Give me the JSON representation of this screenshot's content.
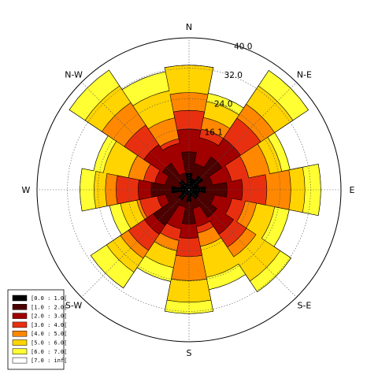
{
  "chart_data": {
    "type": "windrose",
    "directions": [
      "N",
      "N-E",
      "E",
      "S-E",
      "S",
      "S-W",
      "W",
      "N-W"
    ],
    "radial_ticks": [
      "16.1",
      "24.0",
      "32.0",
      "40.0"
    ],
    "r_max": 40.0,
    "bins": [
      {
        "label": "[0.0 : 1.0[",
        "color": "#000000"
      },
      {
        "label": "[1.0 : 2.0[",
        "color": "#4d0000"
      },
      {
        "label": "[2.0 : 3.0[",
        "color": "#a00000"
      },
      {
        "label": "[3.0 : 4.0[",
        "color": "#e83010"
      },
      {
        "label": "[4.0 : 5.0[",
        "color": "#ff8800"
      },
      {
        "label": "[5.0 : 6.0[",
        "color": "#ffd400"
      },
      {
        "label": "[6.0 : 7.0[",
        "color": "#ffff33"
      },
      {
        "label": "[7.0 : inf[",
        "color": "#ffffff"
      }
    ],
    "sector_angles_deg": [
      0,
      22.5,
      45,
      67.5,
      90,
      112.5,
      135,
      157.5,
      180,
      202.5,
      225,
      247.5,
      270,
      292.5,
      315,
      337.5
    ],
    "cumulative_frequency": [
      [
        4.4,
        3.0,
        4.4,
        2.7,
        4.4,
        2.7,
        3.0,
        1.8,
        3.1,
        1.4,
        3.3,
        2.3,
        4.6,
        2.4,
        3.1,
        1.8
      ],
      [
        10.0,
        7.0,
        10.4,
        6.3,
        10.0,
        6.8,
        8.8,
        5.0,
        9.0,
        4.7,
        11.3,
        6.2,
        10.0,
        6.4,
        8.4,
        4.5
      ],
      [
        16.0,
        14.0,
        16.3,
        11.4,
        14.1,
        11.5,
        14.1,
        9.9,
        12.8,
        10.5,
        14.1,
        8.5,
        13.4,
        9.2,
        14.3,
        12.5
      ],
      [
        20.9,
        16.3,
        22.7,
        16.0,
        20.5,
        15.1,
        18.2,
        11.6,
        17.6,
        13.6,
        19.2,
        13.2,
        19.2,
        12.2,
        20.5,
        13.7
      ],
      [
        25.6,
        19.4,
        27.1,
        21.7,
        26.8,
        18.1,
        21.2,
        15.2,
        23.9,
        16.4,
        21.7,
        14.0,
        22.0,
        16.3,
        27.6,
        19.3
      ],
      [
        32.8,
        23.7,
        32.9,
        24.9,
        30.5,
        23.0,
        28.9,
        23.5,
        29.6,
        20.9,
        26.1,
        18.4,
        25.0,
        23.0,
        32.9,
        26.6
      ],
      [
        32.8,
        25.9,
        37.8,
        27.1,
        34.7,
        26.9,
        32.3,
        26.8,
        32.6,
        24.6,
        31.1,
        21.3,
        28.7,
        25.6,
        37.9,
        31.7
      ],
      [
        32.8,
        25.9,
        37.8,
        27.1,
        34.7,
        26.9,
        32.3,
        26.8,
        32.6,
        24.6,
        31.1,
        21.3,
        28.7,
        25.6,
        37.9,
        31.7
      ]
    ],
    "grid": true,
    "legend_placement": "bottom-left"
  }
}
